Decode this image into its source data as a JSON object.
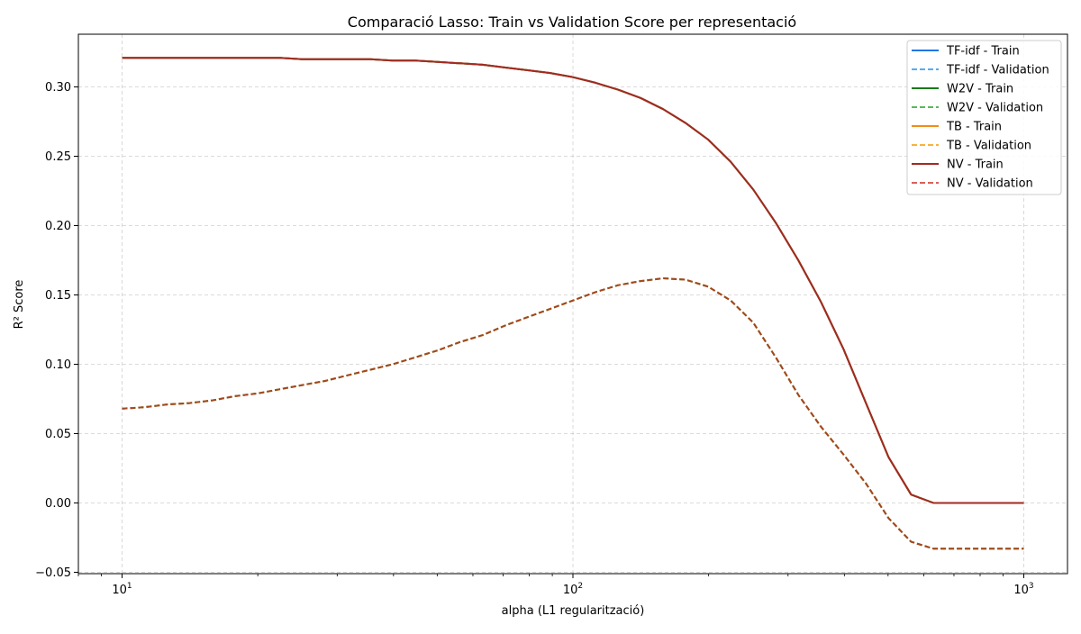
{
  "chart_data": {
    "type": "line",
    "title": "Comparació Lasso: Train vs Validation Score per representació",
    "xlabel": "alpha (L1 regularització)",
    "ylabel": "R² Score",
    "xscale": "log",
    "xlim": [
      8,
      1250
    ],
    "ylim": [
      -0.051,
      0.338
    ],
    "grid": true,
    "legend_position": "top-right",
    "x_ticks": [
      {
        "value": 10,
        "base": "10",
        "exp": "1"
      },
      {
        "value": 100,
        "base": "10",
        "exp": "2"
      },
      {
        "value": 1000,
        "base": "10",
        "exp": "3"
      }
    ],
    "y_ticks": [
      {
        "value": -0.05,
        "label": "−0.05"
      },
      {
        "value": 0.0,
        "label": "0.00"
      },
      {
        "value": 0.05,
        "label": "0.05"
      },
      {
        "value": 0.1,
        "label": "0.10"
      },
      {
        "value": 0.15,
        "label": "0.15"
      },
      {
        "value": 0.2,
        "label": "0.20"
      },
      {
        "value": 0.25,
        "label": "0.25"
      },
      {
        "value": 0.3,
        "label": "0.30"
      }
    ],
    "x": [
      10,
      11.2,
      12.6,
      14.1,
      15.9,
      17.8,
      20,
      22.4,
      25.1,
      28.2,
      31.6,
      35.5,
      39.8,
      44.7,
      50.1,
      56.2,
      63.1,
      70.8,
      79.4,
      89.1,
      100,
      112.2,
      125.9,
      141.3,
      158.5,
      177.8,
      199.5,
      223.9,
      251.2,
      281.8,
      316.2,
      354.8,
      398.1,
      446.7,
      501.2,
      562.3,
      631,
      707.9,
      794.3,
      891.3,
      1000
    ],
    "series": [
      {
        "name": "TF-idf - Train",
        "color": "#1f77e4",
        "dash": "solid",
        "values": [
          0.321,
          0.321,
          0.321,
          0.321,
          0.321,
          0.321,
          0.321,
          0.321,
          0.32,
          0.32,
          0.32,
          0.32,
          0.319,
          0.319,
          0.318,
          0.317,
          0.316,
          0.314,
          0.312,
          0.31,
          0.307,
          0.303,
          0.298,
          0.292,
          0.284,
          0.274,
          0.262,
          0.246,
          0.226,
          0.202,
          0.175,
          0.145,
          0.111,
          0.072,
          0.033,
          0.006,
          0.0,
          0.0,
          0.0,
          0.0,
          0.0
        ]
      },
      {
        "name": "TF-idf - Validation",
        "color": "#5aa9f2",
        "dash": "dashed",
        "values": [
          0.068,
          0.069,
          0.071,
          0.072,
          0.074,
          0.077,
          0.079,
          0.082,
          0.085,
          0.088,
          0.092,
          0.096,
          0.1,
          0.105,
          0.11,
          0.116,
          0.121,
          0.128,
          0.134,
          0.14,
          0.146,
          0.152,
          0.157,
          0.16,
          0.162,
          0.161,
          0.156,
          0.146,
          0.13,
          0.105,
          0.078,
          0.055,
          0.035,
          0.014,
          -0.011,
          -0.028,
          -0.033,
          -0.033,
          -0.033,
          -0.033,
          -0.033
        ]
      },
      {
        "name": "W2V - Train",
        "color": "#1a7a1a",
        "dash": "solid",
        "values": [
          0.321,
          0.321,
          0.321,
          0.321,
          0.321,
          0.321,
          0.321,
          0.321,
          0.32,
          0.32,
          0.32,
          0.32,
          0.319,
          0.319,
          0.318,
          0.317,
          0.316,
          0.314,
          0.312,
          0.31,
          0.307,
          0.303,
          0.298,
          0.292,
          0.284,
          0.274,
          0.262,
          0.246,
          0.226,
          0.202,
          0.175,
          0.145,
          0.111,
          0.072,
          0.033,
          0.006,
          0.0,
          0.0,
          0.0,
          0.0,
          0.0
        ]
      },
      {
        "name": "W2V - Validation",
        "color": "#5cb85c",
        "dash": "dashed",
        "values": [
          0.068,
          0.069,
          0.071,
          0.072,
          0.074,
          0.077,
          0.079,
          0.082,
          0.085,
          0.088,
          0.092,
          0.096,
          0.1,
          0.105,
          0.11,
          0.116,
          0.121,
          0.128,
          0.134,
          0.14,
          0.146,
          0.152,
          0.157,
          0.16,
          0.162,
          0.161,
          0.156,
          0.146,
          0.13,
          0.105,
          0.078,
          0.055,
          0.035,
          0.014,
          -0.011,
          -0.028,
          -0.033,
          -0.033,
          -0.033,
          -0.033,
          -0.033
        ]
      },
      {
        "name": "TB - Train",
        "color": "#f28c1c",
        "dash": "solid",
        "values": [
          0.321,
          0.321,
          0.321,
          0.321,
          0.321,
          0.321,
          0.321,
          0.321,
          0.32,
          0.32,
          0.32,
          0.32,
          0.319,
          0.319,
          0.318,
          0.317,
          0.316,
          0.314,
          0.312,
          0.31,
          0.307,
          0.303,
          0.298,
          0.292,
          0.284,
          0.274,
          0.262,
          0.246,
          0.226,
          0.202,
          0.175,
          0.145,
          0.111,
          0.072,
          0.033,
          0.006,
          0.0,
          0.0,
          0.0,
          0.0,
          0.0
        ]
      },
      {
        "name": "TB - Validation",
        "color": "#f5b342",
        "dash": "dashed",
        "values": [
          0.068,
          0.069,
          0.071,
          0.072,
          0.074,
          0.077,
          0.079,
          0.082,
          0.085,
          0.088,
          0.092,
          0.096,
          0.1,
          0.105,
          0.11,
          0.116,
          0.121,
          0.128,
          0.134,
          0.14,
          0.146,
          0.152,
          0.157,
          0.16,
          0.162,
          0.161,
          0.156,
          0.146,
          0.13,
          0.105,
          0.078,
          0.055,
          0.035,
          0.014,
          -0.011,
          -0.028,
          -0.033,
          -0.033,
          -0.033,
          -0.033,
          -0.033
        ]
      },
      {
        "name": "NV - Train",
        "color": "#a12a22",
        "dash": "solid",
        "values": [
          0.321,
          0.321,
          0.321,
          0.321,
          0.321,
          0.321,
          0.321,
          0.321,
          0.32,
          0.32,
          0.32,
          0.32,
          0.319,
          0.319,
          0.318,
          0.317,
          0.316,
          0.314,
          0.312,
          0.31,
          0.307,
          0.303,
          0.298,
          0.292,
          0.284,
          0.274,
          0.262,
          0.246,
          0.226,
          0.202,
          0.175,
          0.145,
          0.111,
          0.072,
          0.033,
          0.006,
          0.0,
          0.0,
          0.0,
          0.0,
          0.0
        ]
      },
      {
        "name": "NV - Validation",
        "color": "#a2471f",
        "legend_color": "#d9605a",
        "dash": "dashed",
        "values": [
          0.068,
          0.069,
          0.071,
          0.072,
          0.074,
          0.077,
          0.079,
          0.082,
          0.085,
          0.088,
          0.092,
          0.096,
          0.1,
          0.105,
          0.11,
          0.116,
          0.121,
          0.128,
          0.134,
          0.14,
          0.146,
          0.152,
          0.157,
          0.16,
          0.162,
          0.161,
          0.156,
          0.146,
          0.13,
          0.105,
          0.078,
          0.055,
          0.035,
          0.014,
          -0.011,
          -0.028,
          -0.033,
          -0.033,
          -0.033,
          -0.033,
          -0.033
        ]
      }
    ]
  }
}
